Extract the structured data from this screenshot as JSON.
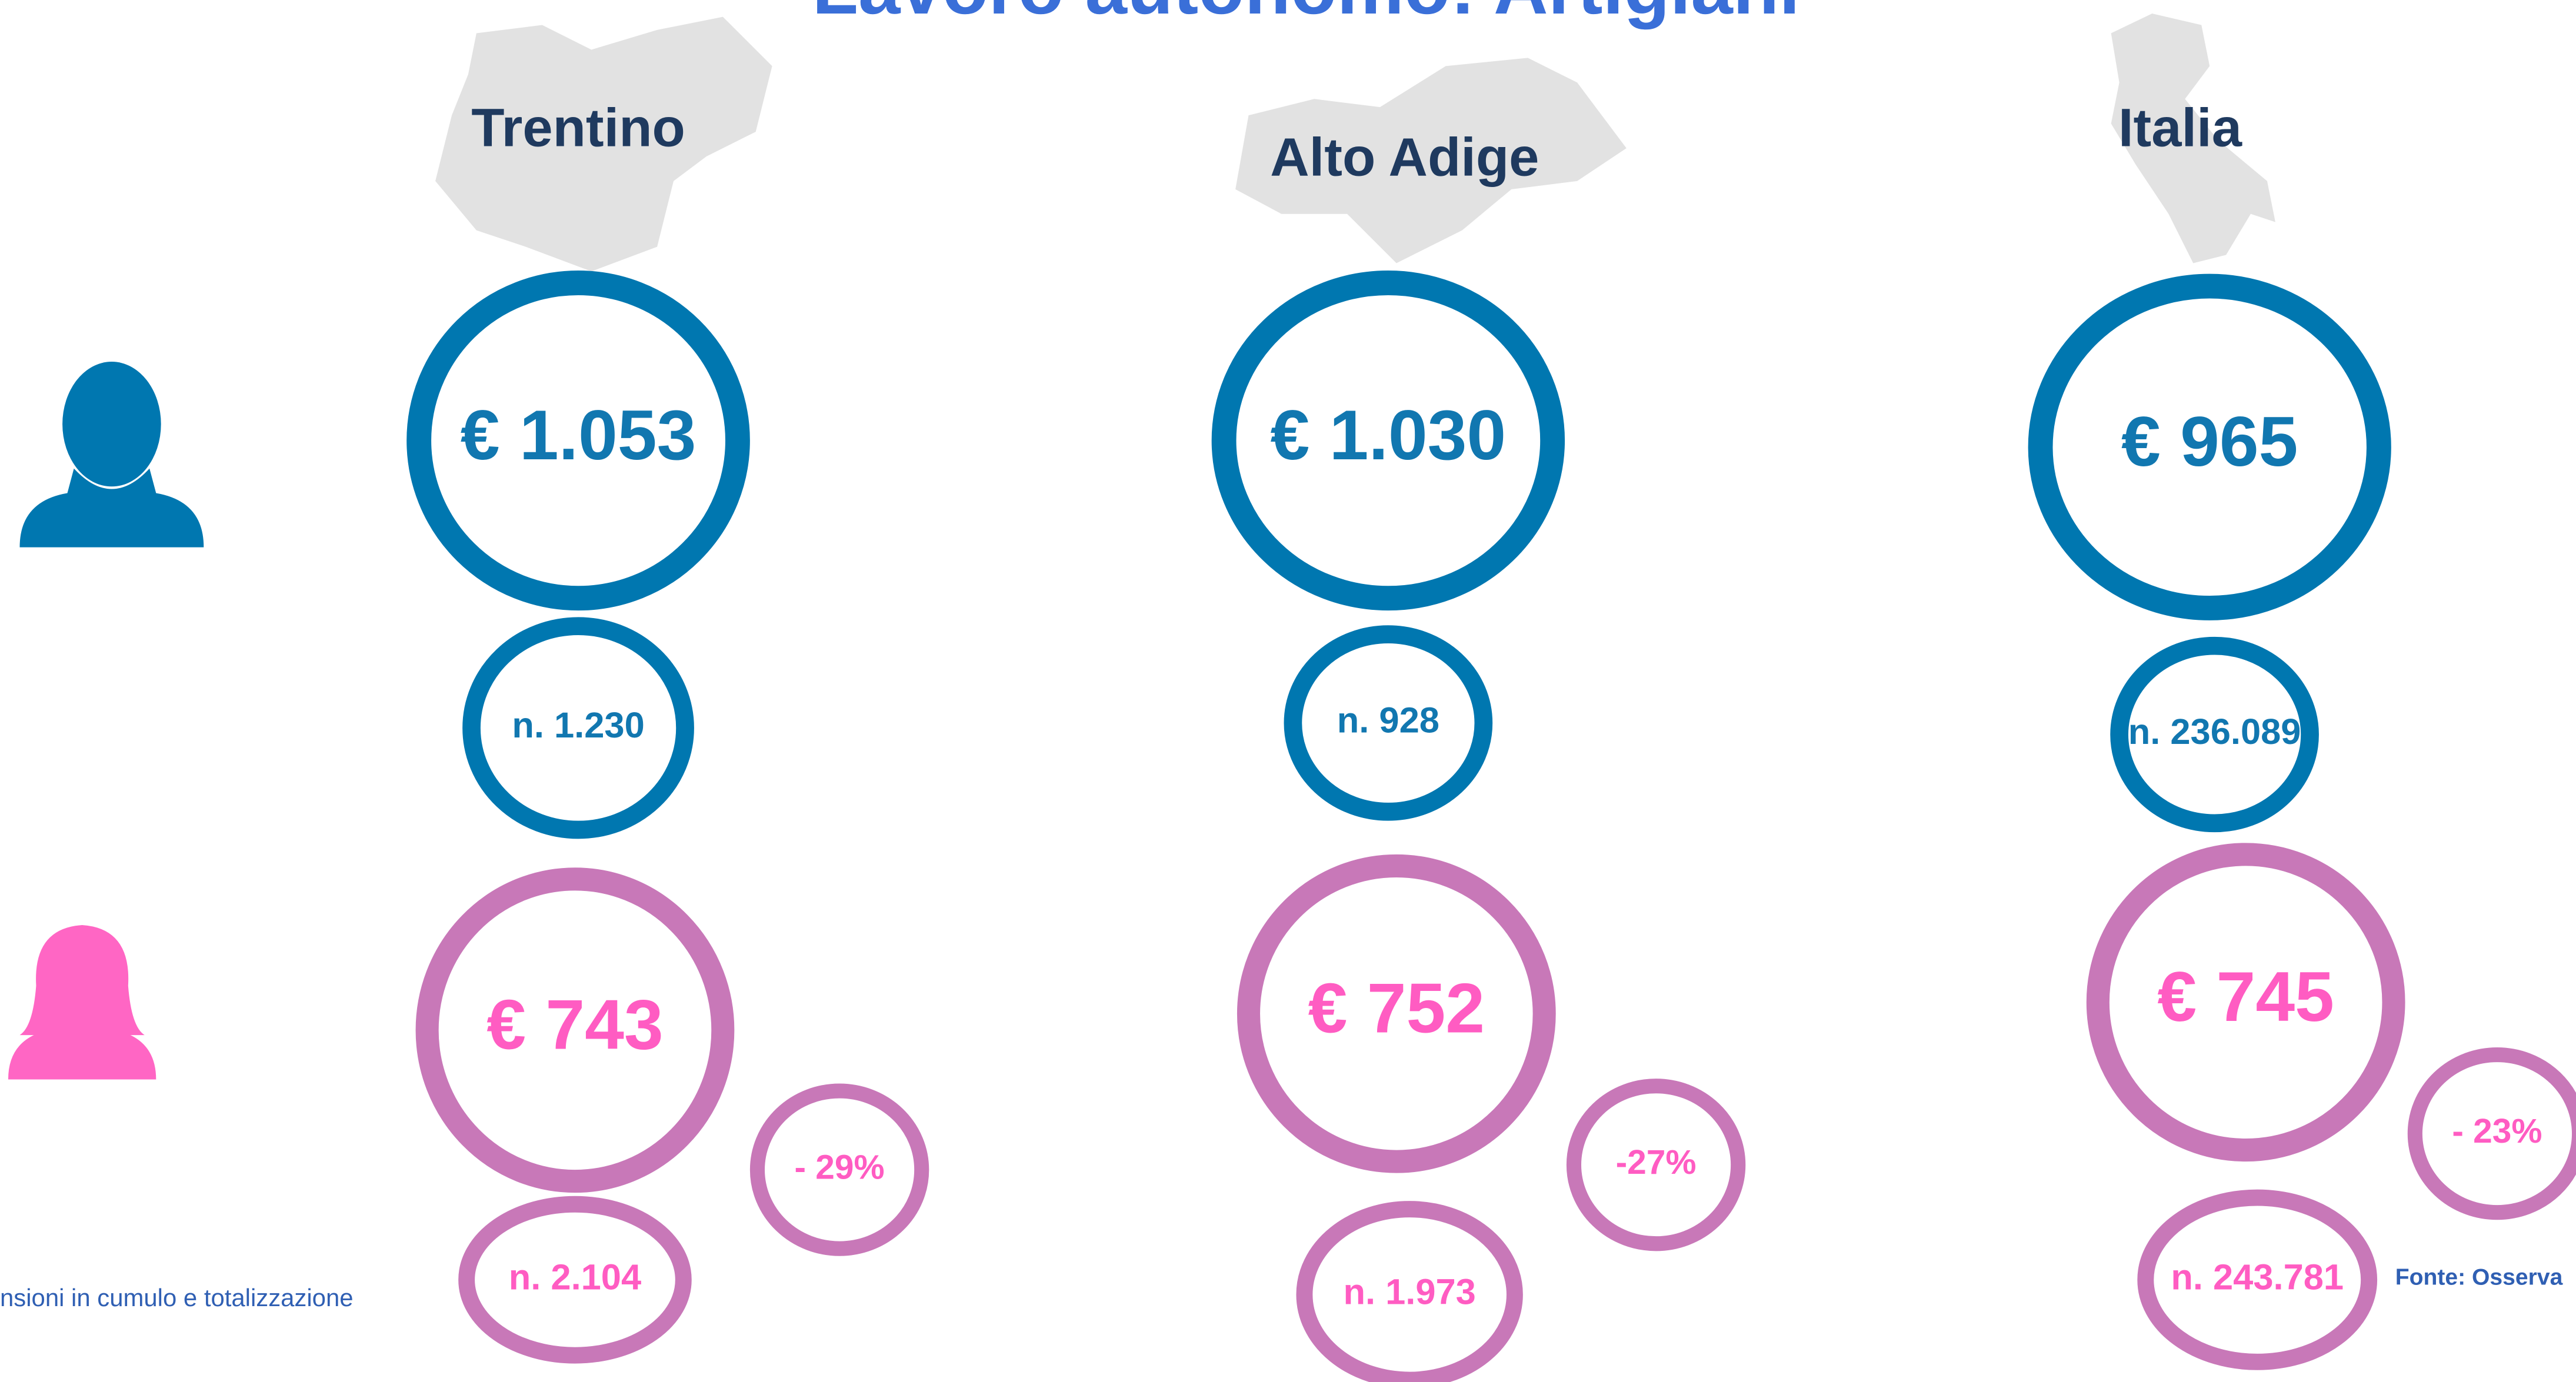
{
  "title": "Lavoro autonomo: Artigiani",
  "regions": [
    {
      "name": "Trentino",
      "male_amount": "€ 1.053",
      "male_count": "n. 1.230",
      "female_amount": "€ 743",
      "female_count": "n. 2.104",
      "gap": "- 29%"
    },
    {
      "name": "Alto Adige",
      "male_amount": "€ 1.030",
      "male_count": "n. 928",
      "female_amount": "€ 752",
      "female_count": "n. 1.973",
      "gap": "-27%"
    },
    {
      "name": "Italia",
      "male_amount": "€ 965",
      "male_count": "n. 236.089",
      "female_amount": "€ 745",
      "female_count": "n. 243.781",
      "gap": "- 23%"
    }
  ],
  "footnote": "nsioni in cumulo e totalizzazione",
  "source": "Fonte: Osserva"
}
